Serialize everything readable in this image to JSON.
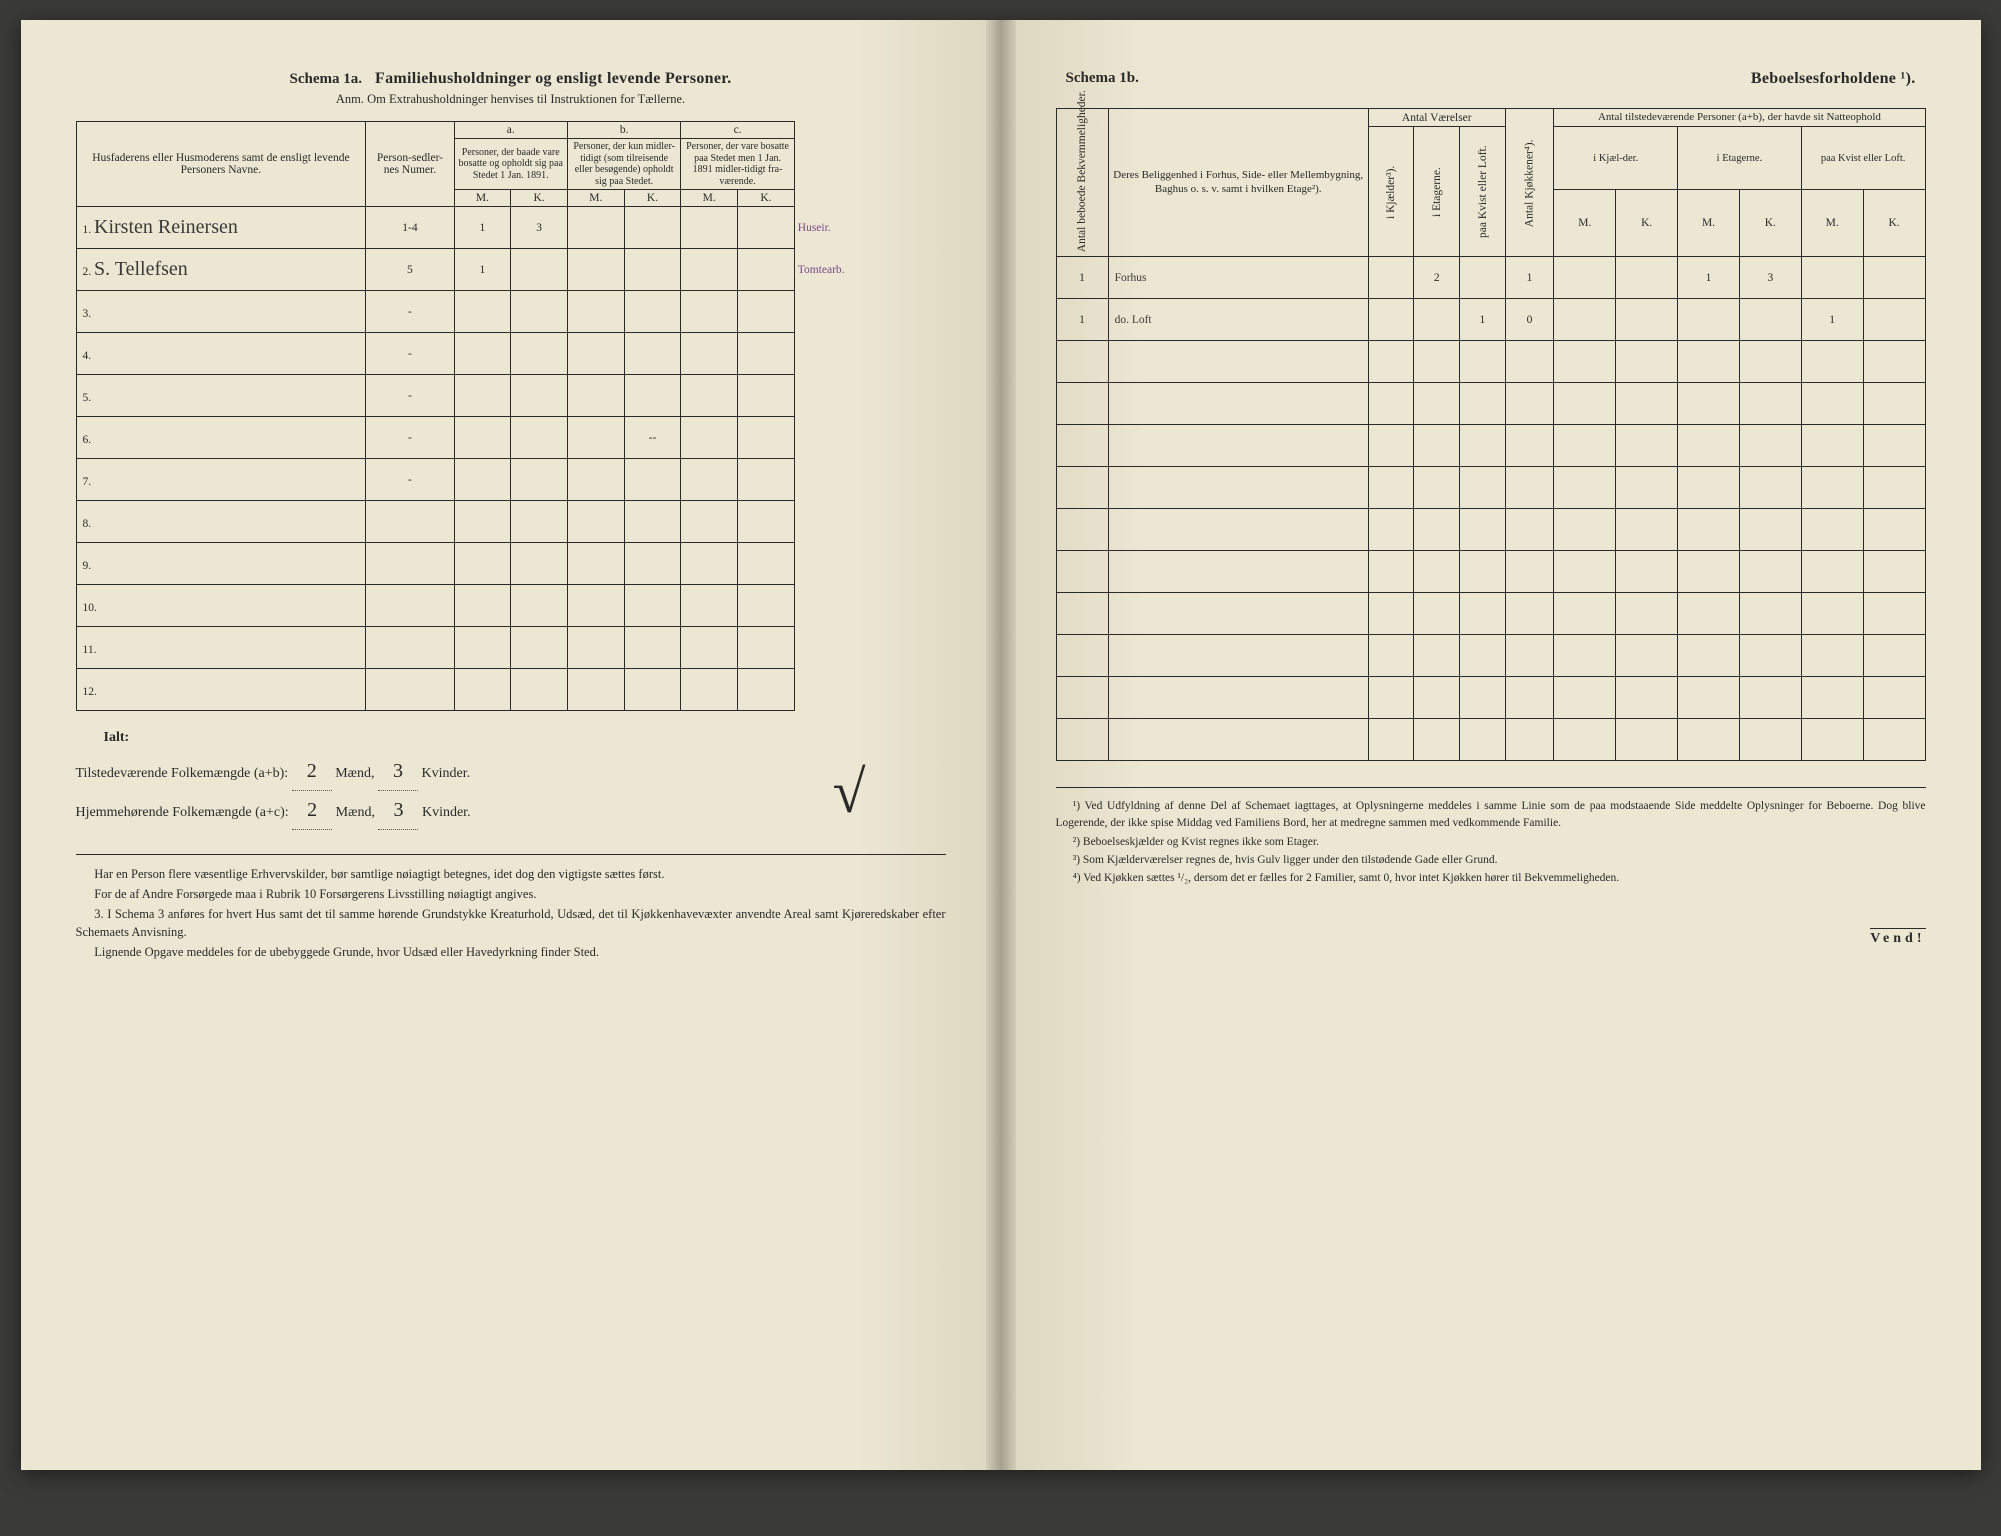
{
  "left": {
    "schema_label": "Schema 1a.",
    "title": "Familiehusholdninger og ensligt levende Personer.",
    "subtitle": "Anm. Om Extrahusholdninger henvises til Instruktionen for Tællerne.",
    "columns": {
      "name_header": "Husfaderens eller Husmoderens samt de ensligt levende Personers Navne.",
      "numer_header": "Person-sedler-nes Numer.",
      "group_a": "a.",
      "group_a_desc": "Personer, der baade vare bosatte og opholdt sig paa Stedet 1 Jan. 1891.",
      "group_b": "b.",
      "group_b_desc": "Personer, der kun midler-tidigt (som tilreisende eller besøgende) opholdt sig paa Stedet.",
      "group_c": "c.",
      "group_c_desc": "Personer, der vare bosatte paa Stedet men 1 Jan. 1891 midler-tidigt fra-værende.",
      "m": "M.",
      "k": "K."
    },
    "rows": [
      {
        "n": "1.",
        "name": "Kirsten Reinersen",
        "num": "1-4",
        "a_m": "1",
        "a_k": "3",
        "b_m": "",
        "b_k": "",
        "c_m": "",
        "c_k": "",
        "note": "Huseir."
      },
      {
        "n": "2.",
        "name": "S. Tellefsen",
        "num": "5",
        "a_m": "1",
        "a_k": "",
        "b_m": "",
        "b_k": "",
        "c_m": "",
        "c_k": "",
        "note": "Tomtearb."
      },
      {
        "n": "3.",
        "name": "",
        "num": "-",
        "a_m": "",
        "a_k": "",
        "b_m": "",
        "b_k": "",
        "c_m": "",
        "c_k": "",
        "note": ""
      },
      {
        "n": "4.",
        "name": "",
        "num": "-",
        "a_m": "",
        "a_k": "",
        "b_m": "",
        "b_k": "",
        "c_m": "",
        "c_k": "",
        "note": ""
      },
      {
        "n": "5.",
        "name": "",
        "num": "-",
        "a_m": "",
        "a_k": "",
        "b_m": "",
        "b_k": "",
        "c_m": "",
        "c_k": "",
        "note": ""
      },
      {
        "n": "6.",
        "name": "",
        "num": "-",
        "a_m": "",
        "a_k": "",
        "b_m": "",
        "b_k": "--",
        "c_m": "",
        "c_k": "",
        "note": ""
      },
      {
        "n": "7.",
        "name": "",
        "num": "-",
        "a_m": "",
        "a_k": "",
        "b_m": "",
        "b_k": "",
        "c_m": "",
        "c_k": "",
        "note": ""
      },
      {
        "n": "8.",
        "name": "",
        "num": "",
        "a_m": "",
        "a_k": "",
        "b_m": "",
        "b_k": "",
        "c_m": "",
        "c_k": "",
        "note": ""
      },
      {
        "n": "9.",
        "name": "",
        "num": "",
        "a_m": "",
        "a_k": "",
        "b_m": "",
        "b_k": "",
        "c_m": "",
        "c_k": "",
        "note": ""
      },
      {
        "n": "10.",
        "name": "",
        "num": "",
        "a_m": "",
        "a_k": "",
        "b_m": "",
        "b_k": "",
        "c_m": "",
        "c_k": "",
        "note": ""
      },
      {
        "n": "11.",
        "name": "",
        "num": "",
        "a_m": "",
        "a_k": "",
        "b_m": "",
        "b_k": "",
        "c_m": "",
        "c_k": "",
        "note": ""
      },
      {
        "n": "12.",
        "name": "",
        "num": "",
        "a_m": "",
        "a_k": "",
        "b_m": "",
        "b_k": "",
        "c_m": "",
        "c_k": "",
        "note": ""
      }
    ],
    "totals": {
      "ialt": "Ialt:",
      "line1_pre": "Tilstedeværende Folkemængde (a+b):",
      "line1_m": "2",
      "line1_mid": "Mænd,",
      "line1_k": "3",
      "line1_end": "Kvinder.",
      "line2_pre": "Hjemmehørende Folkemængde (a+c):",
      "line2_m": "2",
      "line2_mid": "Mænd,",
      "line2_k": "3",
      "line2_end": "Kvinder."
    },
    "notes": {
      "p1": "Har en Person flere væsentlige Erhvervskilder, bør samtlige nøiagtigt betegnes, idet dog den vigtigste sættes først.",
      "p2": "For de af Andre Forsørgede maa i Rubrik 10 Forsørgerens Livsstilling nøiagtigt angives.",
      "p3_label": "3.",
      "p3": "I Schema 3 anføres for hvert Hus samt det til samme hørende Grundstykke Kreaturhold, Udsæd, det til Kjøkkenhavevæxter anvendte Areal samt Kjøreredskaber efter Schemaets Anvisning.",
      "p4": "Lignende Opgave meddeles for de ubebyggede Grunde, hvor Udsæd eller Havedyrkning finder Sted."
    }
  },
  "right": {
    "schema_label": "Schema 1b.",
    "title": "Beboelsesforholdene ¹).",
    "columns": {
      "bekv": "Antal beboede Bekvemmeligheder.",
      "location": "Deres Beliggenhed i Forhus, Side- eller Mellembygning, Baghus o. s. v. samt i hvilken Etage²).",
      "vaerelser_group": "Antal Værelser",
      "kjokken": "Antal Kjøkkener⁴).",
      "persons_group": "Antal tilstedeværende Personer (a+b), der havde sit Natteophold",
      "kjaelder": "i Kjælder³).",
      "etagerne": "i Etagerne.",
      "kvist": "paa Kvist eller Loft.",
      "ikjael": "i Kjæl-der.",
      "ietag": "i Etagerne.",
      "paakvist": "paa Kvist eller Loft.",
      "m": "M.",
      "k": "K."
    },
    "rows": [
      {
        "bekv": "1",
        "loc": "Forhus",
        "kj": "",
        "et": "2",
        "kv": "",
        "kjok": "1",
        "km": "",
        "kk": "",
        "em": "1",
        "ek": "3",
        "lm": "",
        "lk": ""
      },
      {
        "bekv": "1",
        "loc": "do. Loft",
        "kj": "",
        "et": "",
        "kv": "1",
        "kjok": "0",
        "km": "",
        "kk": "",
        "em": "",
        "ek": "",
        "lm": "1",
        "lk": ""
      },
      {
        "bekv": "",
        "loc": "",
        "kj": "",
        "et": "",
        "kv": "",
        "kjok": "",
        "km": "",
        "kk": "",
        "em": "",
        "ek": "",
        "lm": "",
        "lk": ""
      },
      {
        "bekv": "",
        "loc": "",
        "kj": "",
        "et": "",
        "kv": "",
        "kjok": "",
        "km": "",
        "kk": "",
        "em": "",
        "ek": "",
        "lm": "",
        "lk": ""
      },
      {
        "bekv": "",
        "loc": "",
        "kj": "",
        "et": "",
        "kv": "",
        "kjok": "",
        "km": "",
        "kk": "",
        "em": "",
        "ek": "",
        "lm": "",
        "lk": ""
      },
      {
        "bekv": "",
        "loc": "",
        "kj": "",
        "et": "",
        "kv": "",
        "kjok": "",
        "km": "",
        "kk": "",
        "em": "",
        "ek": "",
        "lm": "",
        "lk": ""
      },
      {
        "bekv": "",
        "loc": "",
        "kj": "",
        "et": "",
        "kv": "",
        "kjok": "",
        "km": "",
        "kk": "",
        "em": "",
        "ek": "",
        "lm": "",
        "lk": ""
      },
      {
        "bekv": "",
        "loc": "",
        "kj": "",
        "et": "",
        "kv": "",
        "kjok": "",
        "km": "",
        "kk": "",
        "em": "",
        "ek": "",
        "lm": "",
        "lk": ""
      },
      {
        "bekv": "",
        "loc": "",
        "kj": "",
        "et": "",
        "kv": "",
        "kjok": "",
        "km": "",
        "kk": "",
        "em": "",
        "ek": "",
        "lm": "",
        "lk": ""
      },
      {
        "bekv": "",
        "loc": "",
        "kj": "",
        "et": "",
        "kv": "",
        "kjok": "",
        "km": "",
        "kk": "",
        "em": "",
        "ek": "",
        "lm": "",
        "lk": ""
      },
      {
        "bekv": "",
        "loc": "",
        "kj": "",
        "et": "",
        "kv": "",
        "kjok": "",
        "km": "",
        "kk": "",
        "em": "",
        "ek": "",
        "lm": "",
        "lk": ""
      },
      {
        "bekv": "",
        "loc": "",
        "kj": "",
        "et": "",
        "kv": "",
        "kjok": "",
        "km": "",
        "kk": "",
        "em": "",
        "ek": "",
        "lm": "",
        "lk": ""
      }
    ],
    "footnotes": {
      "f1": "¹) Ved Udfyldning af denne Del af Schemaet iagttages, at Oplysningerne meddeles i samme Linie som de paa modstaaende Side meddelte Oplysninger for Beboerne. Dog blive Logerende, der ikke spise Middag ved Familiens Bord, her at medregne sammen med vedkommende Familie.",
      "f2": "²) Beboelseskjælder og Kvist regnes ikke som Etager.",
      "f3": "³) Som Kjælderværelser regnes de, hvis Gulv ligger under den tilstødende Gade eller Grund.",
      "f4": "⁴) Ved Kjøkken sættes ¹/₂, dersom det er fælles for 2 Familier, samt 0, hvor intet Kjøkken hører til Bekvemmeligheden."
    },
    "vend": "Vend!"
  }
}
